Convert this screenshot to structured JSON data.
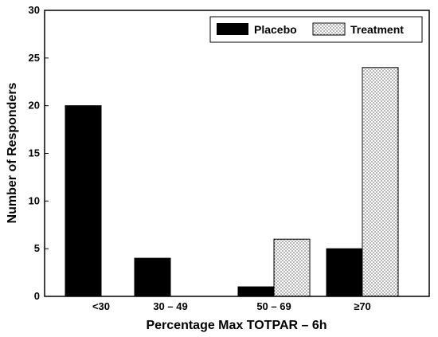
{
  "chart_data": {
    "type": "bar",
    "categories": [
      "<30",
      "30 – 49",
      "50 – 69",
      "≥70"
    ],
    "series": [
      {
        "name": "Placebo",
        "values": [
          20,
          4,
          1,
          5
        ],
        "color": "#000000",
        "pattern": "solid"
      },
      {
        "name": "Treatment",
        "values": [
          0,
          0,
          6,
          24
        ],
        "color": "#ffffff",
        "pattern": "dotted"
      }
    ],
    "xlabel": "Percentage Max TOTPAR – 6h",
    "ylabel": "Number of Responders",
    "ylim": [
      0,
      30
    ],
    "yticks": [
      0,
      5,
      10,
      15,
      20,
      25,
      30
    ],
    "grid": false,
    "legend_position": "top-right"
  }
}
